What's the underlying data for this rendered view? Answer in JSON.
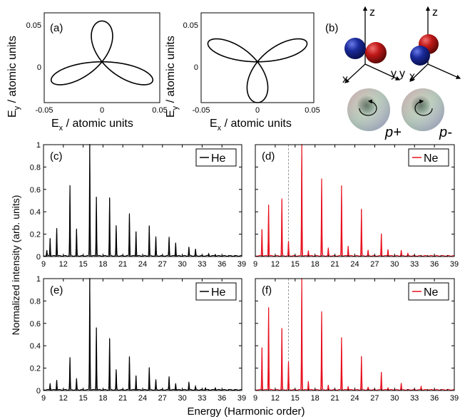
{
  "colors": {
    "he": "#000000",
    "ne": "#e8101e",
    "guide": "#9a9a9a",
    "atom_blue": "#1a2a9a",
    "atom_red": "#c01818"
  },
  "labels": {
    "a": "(a)",
    "b": "(b)",
    "c": "(c)",
    "d": "(d)",
    "e": "(e)",
    "f": "(f)",
    "ex_label_main": "E",
    "ex_label_sub": "x",
    "ex_label_rest": " / atomic units",
    "ey_label_main": "E",
    "ey_label_sub": "y",
    "ey_label_rest": " / atomic units",
    "intensity_label": "Normalized intensity (arb. units)",
    "energy_label": "Energy (Harmonic order)",
    "axis_z": "z",
    "axis_y": "y",
    "axis_x": "x",
    "p_plus": "p+",
    "p_minus": "p-"
  },
  "chart_data": [
    {
      "id": "a-left",
      "type": "line",
      "panel": "(a)",
      "description_visible": "three-lobed polarization curve",
      "xlim": [
        -0.05,
        0.05
      ],
      "ylim": [
        -0.05,
        0.06
      ],
      "xticks": [
        "-0.05",
        "0",
        "0.05"
      ],
      "yticks": [
        "0",
        "0.05"
      ],
      "xlabel": "E_x / atomic units",
      "ylabel": "E_y / atomic units",
      "curve": {
        "amplitude": 0.05,
        "ratio": 2,
        "rotation_deg": 90
      }
    },
    {
      "id": "a-right",
      "type": "line",
      "panel": "(a)",
      "xlim": [
        -0.05,
        0.05
      ],
      "ylim": [
        -0.05,
        0.06
      ],
      "xticks": [
        "-0.05",
        "0",
        "0.05"
      ],
      "yticks": [
        "0",
        "0.05"
      ],
      "xlabel": "E_x / atomic units",
      "ylabel": "E_y / atomic units",
      "curve": {
        "amplitude": 0.05,
        "ratio": 2,
        "rotation_deg": -90
      }
    },
    {
      "id": "c",
      "type": "line",
      "panel": "(c)",
      "legend": "He",
      "color": "#000000",
      "xlim": [
        9,
        39
      ],
      "ylim": [
        0,
        1
      ],
      "xticks": [
        9,
        12,
        15,
        18,
        21,
        24,
        27,
        30,
        33,
        36,
        39
      ],
      "yticks": [
        0,
        0.2,
        0.4,
        0.6,
        0.8,
        1
      ],
      "peaks": [
        [
          9.5,
          0.05
        ],
        [
          10,
          0.16
        ],
        [
          11,
          0.25
        ],
        [
          13,
          0.63
        ],
        [
          14,
          0.24
        ],
        [
          16,
          1.0
        ],
        [
          17,
          0.53
        ],
        [
          19,
          0.52
        ],
        [
          20,
          0.27
        ],
        [
          22,
          0.38
        ],
        [
          23,
          0.22
        ],
        [
          25,
          0.27
        ],
        [
          26,
          0.17
        ],
        [
          28,
          0.17
        ],
        [
          29,
          0.12
        ],
        [
          31,
          0.08
        ],
        [
          32,
          0.06
        ],
        [
          34,
          0.02
        ],
        [
          35,
          0.015
        ]
      ],
      "guide_x": 16
    },
    {
      "id": "d",
      "type": "line",
      "panel": "(d)",
      "legend": "Ne",
      "color": "#e8101e",
      "xlim": [
        9,
        39
      ],
      "ylim": [
        0,
        1
      ],
      "xticks": [
        9,
        12,
        15,
        18,
        21,
        24,
        27,
        30,
        33,
        36,
        39
      ],
      "yticks": [
        0,
        0.2,
        0.4,
        0.6,
        0.8,
        1
      ],
      "peaks": [
        [
          10,
          0.24
        ],
        [
          11,
          0.46
        ],
        [
          13,
          0.51
        ],
        [
          14,
          0.13
        ],
        [
          16,
          1.0
        ],
        [
          17,
          0.05
        ],
        [
          19,
          0.69
        ],
        [
          20,
          0.07
        ],
        [
          22,
          0.63
        ],
        [
          23,
          0.09
        ],
        [
          25,
          0.42
        ],
        [
          26,
          0.05
        ],
        [
          28,
          0.2
        ],
        [
          29,
          0.06
        ],
        [
          31,
          0.05
        ],
        [
          32,
          0.02
        ]
      ],
      "guide_x": 14
    },
    {
      "id": "e",
      "type": "line",
      "panel": "(e)",
      "legend": "He",
      "color": "#000000",
      "xlim": [
        9,
        39
      ],
      "ylim": [
        0,
        1
      ],
      "xticks": [
        9,
        12,
        15,
        18,
        21,
        24,
        27,
        30,
        33,
        36,
        39
      ],
      "yticks": [
        0,
        0.2,
        0.4,
        0.6,
        0.8,
        1
      ],
      "peaks": [
        [
          10,
          0.06
        ],
        [
          11,
          0.09
        ],
        [
          13,
          0.29
        ],
        [
          14,
          0.1
        ],
        [
          16,
          1.0
        ],
        [
          17,
          0.56
        ],
        [
          19,
          0.46
        ],
        [
          20,
          0.18
        ],
        [
          22,
          0.3
        ],
        [
          23,
          0.13
        ],
        [
          25,
          0.2
        ],
        [
          26,
          0.09
        ],
        [
          28,
          0.12
        ],
        [
          29,
          0.06
        ],
        [
          31,
          0.07
        ],
        [
          32,
          0.03
        ],
        [
          33.5,
          0.02
        ],
        [
          35,
          0.02
        ]
      ],
      "guide_x": 16
    },
    {
      "id": "f",
      "type": "line",
      "panel": "(f)",
      "legend": "Ne",
      "color": "#e8101e",
      "xlim": [
        9,
        39
      ],
      "ylim": [
        0,
        1
      ],
      "xticks": [
        9,
        12,
        15,
        18,
        21,
        24,
        27,
        30,
        33,
        36,
        39
      ],
      "yticks": [
        0,
        0.2,
        0.4,
        0.6,
        0.8,
        1
      ],
      "peaks": [
        [
          10,
          0.38
        ],
        [
          11,
          0.74
        ],
        [
          13,
          0.55
        ],
        [
          14,
          0.25
        ],
        [
          16,
          1.0
        ],
        [
          17,
          0.08
        ],
        [
          19,
          0.7
        ],
        [
          20,
          0.04
        ],
        [
          22,
          0.47
        ],
        [
          23,
          0.03
        ],
        [
          25,
          0.3
        ],
        [
          26,
          0.02
        ],
        [
          28,
          0.16
        ],
        [
          29,
          0.02
        ],
        [
          31,
          0.06
        ],
        [
          34,
          0.03
        ]
      ],
      "guide_x": 14
    }
  ]
}
